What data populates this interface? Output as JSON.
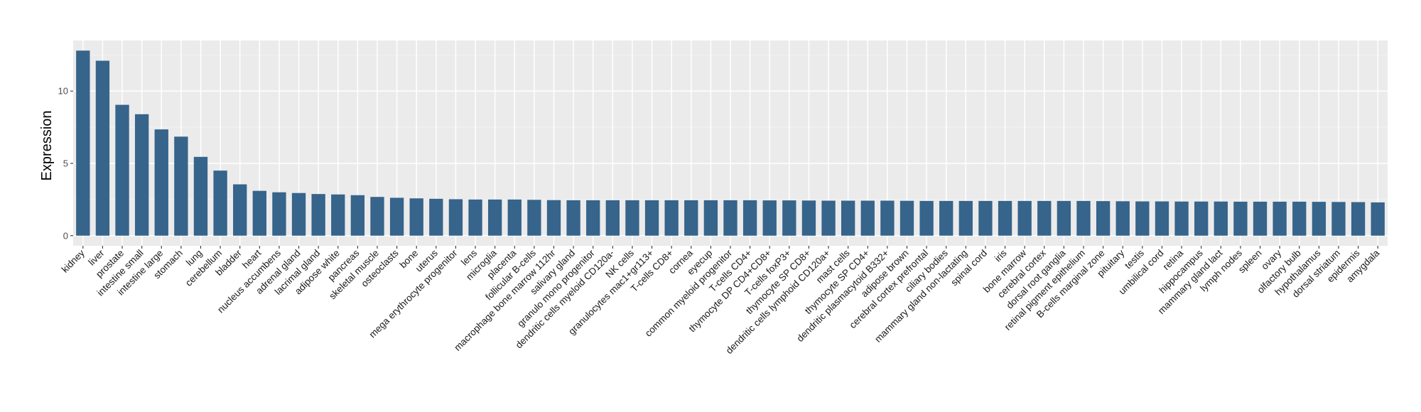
{
  "chart_data": {
    "type": "bar",
    "title": "",
    "xlabel": "",
    "ylabel": "Expression",
    "ylim": [
      -0.7,
      13.5
    ],
    "yticks": [
      0,
      5,
      10
    ],
    "grid": true,
    "legend": "none",
    "bar_color": "#36648b",
    "panel_color": "#ebebeb",
    "categories": [
      "kidney",
      "liver",
      "prostate",
      "intestine small",
      "intestine large",
      "stomach",
      "lung",
      "cerebellum",
      "bladder",
      "heart",
      "nucleus accumbens",
      "adrenal gland",
      "lacrimal gland",
      "adipose white",
      "pancreas",
      "skeletal muscle",
      "osteoclasts",
      "bone",
      "uterus",
      "mega erythrocyte progenitor",
      "lens",
      "microglia",
      "placenta",
      "follicular B-cells",
      "macrophage bone marrow 112hr",
      "salivary gland",
      "granulo mono progenitor",
      "dendritic cells myeloid CD120a-",
      "NK cells",
      "granulocytes mac1+gr113+",
      "T-cells CD8+",
      "cornea",
      "eyecup",
      "common myeloid progenitor",
      "T-cells CD4+",
      "thymocyte DP CD4+CD8+",
      "T-cells foxP3+",
      "thymocyte SP CD8+",
      "dendritic cells lymphoid CD120a+",
      "mast cells",
      "thymocyte SP CD4+",
      "dendritic plasmacytoid B332+",
      "adipose brown",
      "cerebral cortex prefrontal",
      "ciliary bodies",
      "mammary gland non-lactating",
      "spinal cord",
      "iris",
      "bone marrow",
      "cerebral cortex",
      "dorsal root ganglia",
      "retinal pigment epithelium",
      "B-cells marginal zone",
      "pituitary",
      "testis",
      "umbilical cord",
      "retina",
      "hippocampus",
      "mammary gland  lact",
      "lymph nodes",
      "spleen",
      "ovary",
      "olfactory bulb",
      "hypothalamus",
      "dorsal striatum",
      "epidermis",
      "amygdala"
    ],
    "values": [
      12.8,
      12.1,
      9.05,
      8.4,
      7.35,
      6.85,
      5.45,
      4.5,
      3.55,
      3.1,
      3.0,
      2.95,
      2.88,
      2.85,
      2.8,
      2.68,
      2.62,
      2.58,
      2.55,
      2.52,
      2.5,
      2.5,
      2.5,
      2.48,
      2.46,
      2.45,
      2.45,
      2.45,
      2.45,
      2.45,
      2.45,
      2.45,
      2.45,
      2.45,
      2.45,
      2.44,
      2.44,
      2.43,
      2.42,
      2.42,
      2.42,
      2.42,
      2.41,
      2.4,
      2.4,
      2.4,
      2.4,
      2.4,
      2.4,
      2.4,
      2.4,
      2.4,
      2.39,
      2.38,
      2.37,
      2.37,
      2.36,
      2.36,
      2.36,
      2.35,
      2.35,
      2.35,
      2.35,
      2.34,
      2.33,
      2.32,
      2.3
    ]
  }
}
